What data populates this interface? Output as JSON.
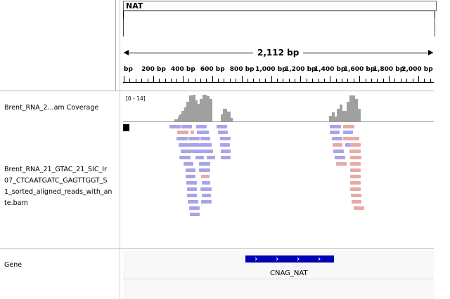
{
  "header": {
    "chromosome": "NAT"
  },
  "ruler": {
    "span_label": "2,112 bp",
    "ticks": [
      "bp",
      "200 bp",
      "400 bp",
      "600 bp",
      "800 bp",
      "1,000 bp",
      "1,200 bp",
      "1,400 bp",
      "1,600 bp",
      "1,800 bp",
      "2,000 bp"
    ]
  },
  "tracks": {
    "coverage": {
      "label": "Brent_RNA_2...am Coverage",
      "range": "[0 - 14]"
    },
    "alignment": {
      "label_lines": [
        "Brent_RNA_21_GTAC_21_SIC_Ir",
        "07_CTCAATGATC_GAGTTGGT_S",
        "1_sorted_aligned_reads_with_an",
        "te.bam"
      ]
    },
    "gene": {
      "label": "Gene",
      "feature_name": "CNAG_NAT"
    }
  },
  "colors": {
    "forward_read": "#a9a3e8",
    "reverse_read": "#e8aaa6",
    "coverage": "#a0a0a0",
    "gene": "#0000b3"
  }
}
